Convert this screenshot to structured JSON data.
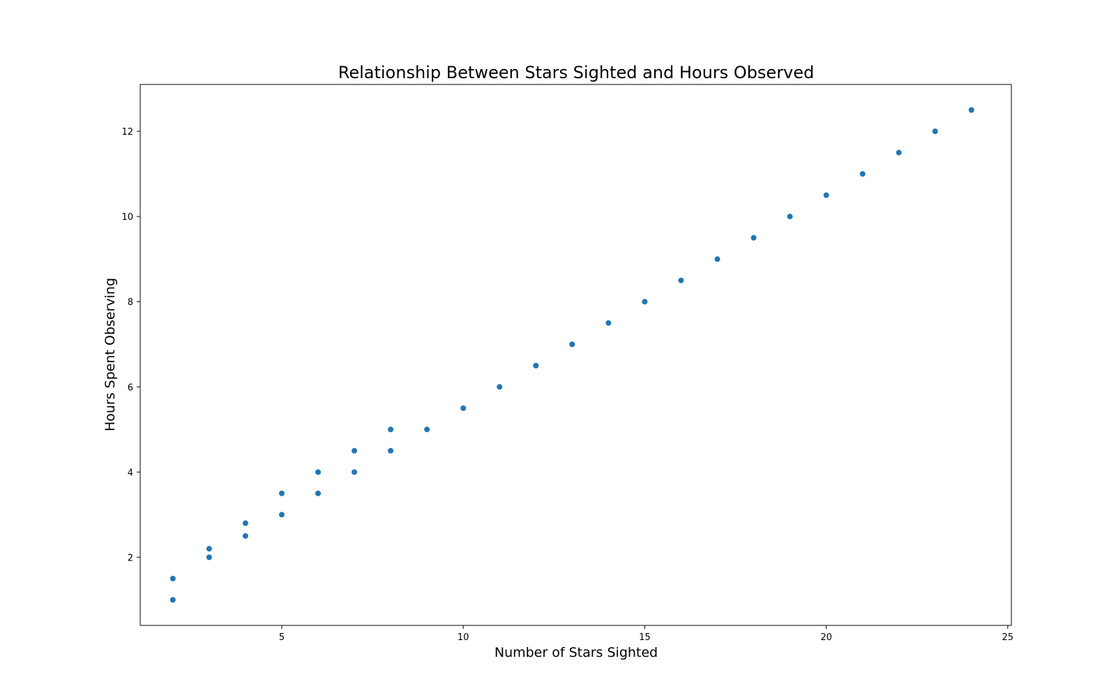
{
  "chart_data": {
    "type": "scatter",
    "title": "Relationship Between Stars Sighted and Hours Observed",
    "xlabel": "Number of Stars Sighted",
    "ylabel": "Hours Spent Observing",
    "xlim": [
      1.1,
      25.1
    ],
    "ylim": [
      0.4,
      13.1
    ],
    "xticks": [
      5,
      10,
      15,
      20,
      25
    ],
    "yticks": [
      2,
      4,
      6,
      8,
      10,
      12
    ],
    "grid": false,
    "marker_color": "#1f77b4",
    "points": [
      {
        "x": 2,
        "y": 1.0
      },
      {
        "x": 2,
        "y": 1.5
      },
      {
        "x": 3,
        "y": 2.0
      },
      {
        "x": 3,
        "y": 2.2
      },
      {
        "x": 4,
        "y": 2.5
      },
      {
        "x": 4,
        "y": 2.8
      },
      {
        "x": 5,
        "y": 3.0
      },
      {
        "x": 5,
        "y": 3.5
      },
      {
        "x": 6,
        "y": 3.5
      },
      {
        "x": 6,
        "y": 4.0
      },
      {
        "x": 7,
        "y": 4.0
      },
      {
        "x": 7,
        "y": 4.5
      },
      {
        "x": 8,
        "y": 4.5
      },
      {
        "x": 8,
        "y": 5.0
      },
      {
        "x": 9,
        "y": 5.0
      },
      {
        "x": 10,
        "y": 5.5
      },
      {
        "x": 11,
        "y": 6.0
      },
      {
        "x": 12,
        "y": 6.5
      },
      {
        "x": 13,
        "y": 7.0
      },
      {
        "x": 14,
        "y": 7.5
      },
      {
        "x": 15,
        "y": 8.0
      },
      {
        "x": 16,
        "y": 8.5
      },
      {
        "x": 17,
        "y": 9.0
      },
      {
        "x": 18,
        "y": 9.5
      },
      {
        "x": 19,
        "y": 10.0
      },
      {
        "x": 20,
        "y": 10.5
      },
      {
        "x": 21,
        "y": 11.0
      },
      {
        "x": 22,
        "y": 11.5
      },
      {
        "x": 23,
        "y": 12.0
      },
      {
        "x": 24,
        "y": 12.5
      }
    ]
  }
}
